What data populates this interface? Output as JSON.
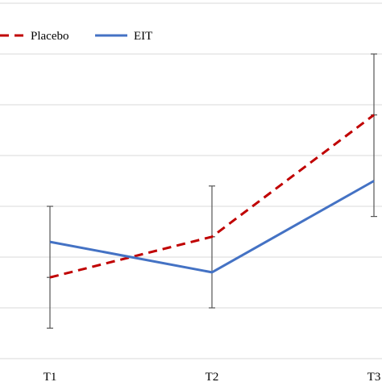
{
  "chart_data": {
    "type": "line",
    "title": "",
    "xlabel": "",
    "ylabel": "",
    "categories": [
      "T1",
      "T2",
      "T3"
    ],
    "ylim": [
      0,
      7
    ],
    "grid": true,
    "legend_placement": "top-left",
    "series": [
      {
        "name": "Placebo",
        "color": "#C00000",
        "dash": "dashed",
        "values": [
          1.6,
          2.4,
          4.8
        ],
        "error_low": [
          0.6,
          1.0,
          2.8
        ],
        "error_high": [
          3.0,
          3.4,
          6.0
        ]
      },
      {
        "name": "EIT",
        "color": "#4472C4",
        "dash": "solid",
        "values": [
          2.3,
          1.7,
          3.5
        ],
        "error_low": null,
        "error_high": null
      }
    ]
  }
}
